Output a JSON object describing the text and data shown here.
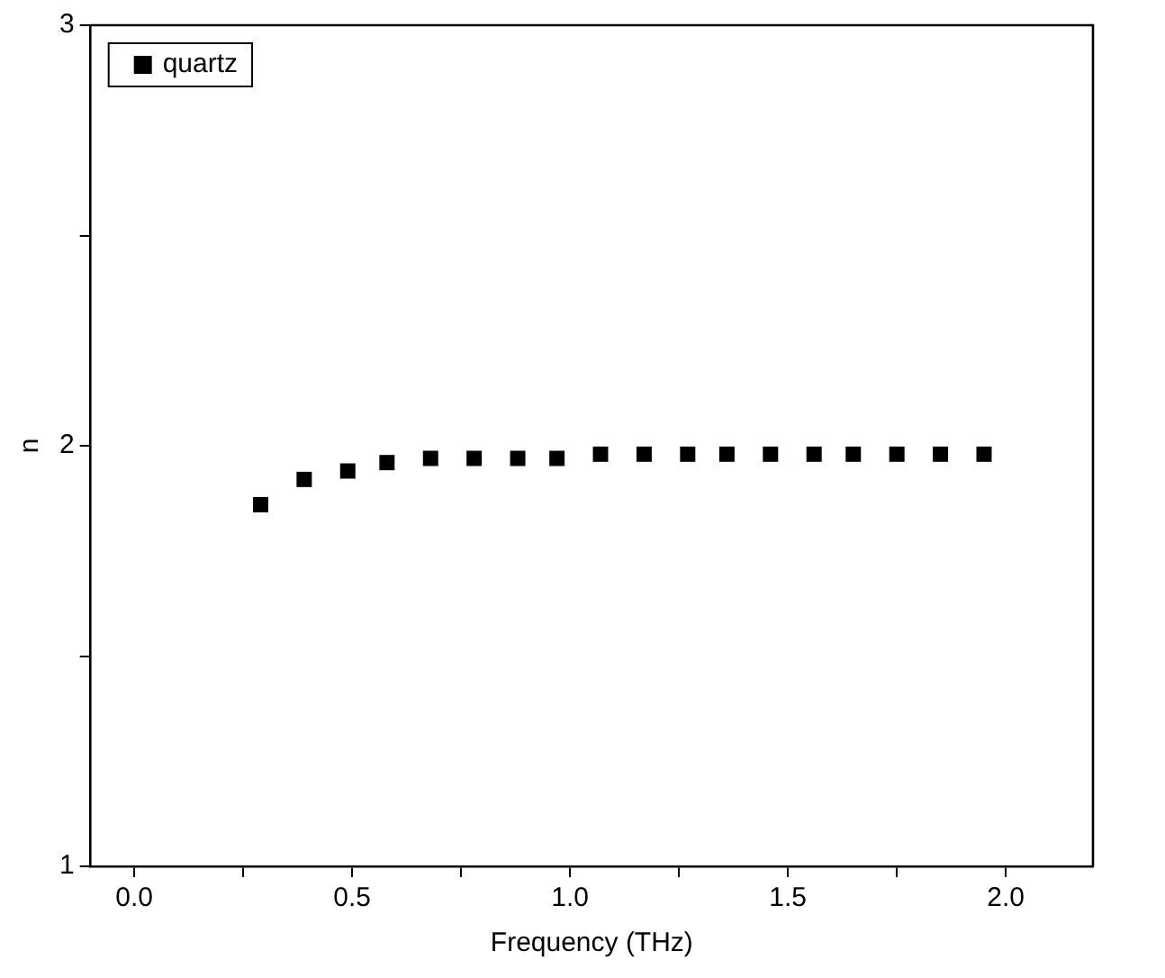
{
  "chart_data": {
    "type": "scatter",
    "xlabel": "Frequency (THz)",
    "ylabel": "n",
    "xlim": [
      -0.1,
      2.2
    ],
    "ylim": [
      1,
      3
    ],
    "xticks": [
      {
        "value": 0,
        "label": "0.0"
      },
      {
        "value": 0.25,
        "label": null
      },
      {
        "value": 0.5,
        "label": "0.5"
      },
      {
        "value": 0.75,
        "label": null
      },
      {
        "value": 1,
        "label": "1.0"
      },
      {
        "value": 1.25,
        "label": null
      },
      {
        "value": 1.5,
        "label": "1.5"
      },
      {
        "value": 1.75,
        "label": null
      },
      {
        "value": 2,
        "label": "2.0"
      }
    ],
    "yticks": [
      1,
      {
        "value": 1.5,
        "label": null
      },
      2,
      {
        "value": 2.5,
        "label": null
      },
      3
    ],
    "grid": false,
    "legend": "top left",
    "marker": "square",
    "series": [
      {
        "name": "quartz",
        "color": "#000000",
        "x": [
          0.29,
          0.39,
          0.49,
          0.58,
          0.68,
          0.78,
          0.88,
          0.97,
          1.07,
          1.17,
          1.27,
          1.36,
          1.46,
          1.56,
          1.65,
          1.75,
          1.85,
          1.95
        ],
        "values": [
          1.86,
          1.92,
          1.94,
          1.96,
          1.97,
          1.97,
          1.97,
          1.97,
          1.98,
          1.98,
          1.98,
          1.98,
          1.98,
          1.98,
          1.98,
          1.98,
          1.98,
          1.98
        ]
      }
    ]
  }
}
